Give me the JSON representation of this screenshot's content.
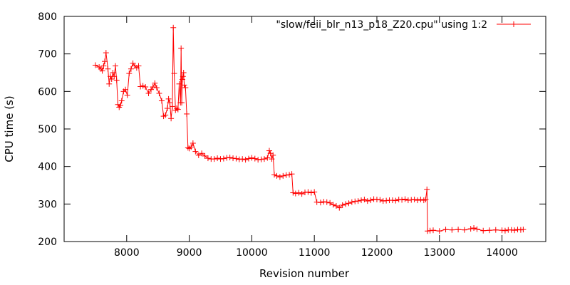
{
  "chart_data": {
    "type": "line",
    "title": "",
    "xlabel": "Revision number",
    "ylabel": "CPU time (s)",
    "xlim": [
      7000,
      14700
    ],
    "ylim": [
      200,
      800
    ],
    "x_ticks": [
      8000,
      9000,
      10000,
      11000,
      12000,
      13000,
      14000
    ],
    "y_ticks": [
      200,
      300,
      400,
      500,
      600,
      700,
      800
    ],
    "grid": false,
    "legend_position": "top-right",
    "series": [
      {
        "name": "\"slow/feii_blr_n13_p18_Z20.cpu\" using 1:2",
        "color": "#ff0000",
        "marker": "plus",
        "points": [
          [
            7500,
            670
          ],
          [
            7560,
            665
          ],
          [
            7590,
            660
          ],
          [
            7610,
            655
          ],
          [
            7630,
            668
          ],
          [
            7650,
            680
          ],
          [
            7670,
            703
          ],
          [
            7700,
            660
          ],
          [
            7720,
            620
          ],
          [
            7740,
            640
          ],
          [
            7760,
            633
          ],
          [
            7780,
            650
          ],
          [
            7800,
            640
          ],
          [
            7820,
            668
          ],
          [
            7840,
            630
          ],
          [
            7860,
            565
          ],
          [
            7880,
            558
          ],
          [
            7900,
            563
          ],
          [
            7920,
            575
          ],
          [
            7950,
            600
          ],
          [
            7980,
            605
          ],
          [
            8010,
            590
          ],
          [
            8040,
            648
          ],
          [
            8070,
            660
          ],
          [
            8100,
            675
          ],
          [
            8130,
            668
          ],
          [
            8160,
            663
          ],
          [
            8190,
            668
          ],
          [
            8220,
            613
          ],
          [
            8260,
            615
          ],
          [
            8300,
            612
          ],
          [
            8350,
            595
          ],
          [
            8390,
            605
          ],
          [
            8420,
            612
          ],
          [
            8450,
            622
          ],
          [
            8480,
            610
          ],
          [
            8520,
            595
          ],
          [
            8560,
            575
          ],
          [
            8590,
            534
          ],
          [
            8620,
            537
          ],
          [
            8650,
            555
          ],
          [
            8670,
            580
          ],
          [
            8690,
            570
          ],
          [
            8710,
            528
          ],
          [
            8730,
            560
          ],
          [
            8745,
            770
          ],
          [
            8760,
            648
          ],
          [
            8780,
            550
          ],
          [
            8800,
            555
          ],
          [
            8820,
            552
          ],
          [
            8840,
            620
          ],
          [
            8860,
            570
          ],
          [
            8870,
            715
          ],
          [
            8880,
            570
          ],
          [
            8890,
            632
          ],
          [
            8900,
            640
          ],
          [
            8910,
            650
          ],
          [
            8920,
            617
          ],
          [
            8940,
            610
          ],
          [
            8960,
            540
          ],
          [
            8980,
            450
          ],
          [
            9000,
            448
          ],
          [
            9030,
            452
          ],
          [
            9060,
            462
          ],
          [
            9100,
            440
          ],
          [
            9150,
            430
          ],
          [
            9200,
            435
          ],
          [
            9250,
            428
          ],
          [
            9300,
            422
          ],
          [
            9350,
            420
          ],
          [
            9400,
            420
          ],
          [
            9450,
            422
          ],
          [
            9500,
            420
          ],
          [
            9550,
            421
          ],
          [
            9600,
            423
          ],
          [
            9650,
            424
          ],
          [
            9700,
            422
          ],
          [
            9750,
            421
          ],
          [
            9800,
            419
          ],
          [
            9850,
            420
          ],
          [
            9900,
            418
          ],
          [
            9950,
            421
          ],
          [
            10000,
            423
          ],
          [
            10050,
            421
          ],
          [
            10100,
            418
          ],
          [
            10150,
            419
          ],
          [
            10200,
            420
          ],
          [
            10250,
            423
          ],
          [
            10280,
            442
          ],
          [
            10300,
            435
          ],
          [
            10320,
            420
          ],
          [
            10340,
            430
          ],
          [
            10360,
            378
          ],
          [
            10400,
            375
          ],
          [
            10450,
            372
          ],
          [
            10500,
            375
          ],
          [
            10550,
            377
          ],
          [
            10600,
            378
          ],
          [
            10640,
            380
          ],
          [
            10660,
            330
          ],
          [
            10700,
            328
          ],
          [
            10750,
            330
          ],
          [
            10800,
            327
          ],
          [
            10850,
            331
          ],
          [
            10900,
            332
          ],
          [
            10950,
            330
          ],
          [
            11000,
            332
          ],
          [
            11040,
            305
          ],
          [
            11100,
            304
          ],
          [
            11150,
            306
          ],
          [
            11200,
            305
          ],
          [
            11250,
            303
          ],
          [
            11300,
            298
          ],
          [
            11350,
            295
          ],
          [
            11400,
            290
          ],
          [
            11450,
            297
          ],
          [
            11500,
            300
          ],
          [
            11550,
            302
          ],
          [
            11600,
            305
          ],
          [
            11650,
            307
          ],
          [
            11700,
            308
          ],
          [
            11750,
            310
          ],
          [
            11800,
            312
          ],
          [
            11850,
            308
          ],
          [
            11900,
            310
          ],
          [
            11950,
            313
          ],
          [
            12000,
            312
          ],
          [
            12050,
            311
          ],
          [
            12100,
            308
          ],
          [
            12150,
            309
          ],
          [
            12200,
            310
          ],
          [
            12250,
            310
          ],
          [
            12300,
            309
          ],
          [
            12350,
            312
          ],
          [
            12400,
            311
          ],
          [
            12450,
            313
          ],
          [
            12500,
            310
          ],
          [
            12550,
            311
          ],
          [
            12600,
            312
          ],
          [
            12650,
            310
          ],
          [
            12700,
            312
          ],
          [
            12750,
            310
          ],
          [
            12780,
            312
          ],
          [
            12800,
            339
          ],
          [
            12810,
            228
          ],
          [
            12850,
            229
          ],
          [
            12900,
            230
          ],
          [
            13000,
            228
          ],
          [
            13100,
            232
          ],
          [
            13200,
            231
          ],
          [
            13300,
            232
          ],
          [
            13400,
            231
          ],
          [
            13500,
            234
          ],
          [
            13550,
            236
          ],
          [
            13600,
            233
          ],
          [
            13700,
            229
          ],
          [
            13800,
            230
          ],
          [
            13900,
            231
          ],
          [
            14000,
            230
          ],
          [
            14050,
            229
          ],
          [
            14100,
            231
          ],
          [
            14150,
            231
          ],
          [
            14200,
            230
          ],
          [
            14250,
            232
          ],
          [
            14300,
            231
          ],
          [
            14340,
            232
          ]
        ]
      }
    ]
  }
}
